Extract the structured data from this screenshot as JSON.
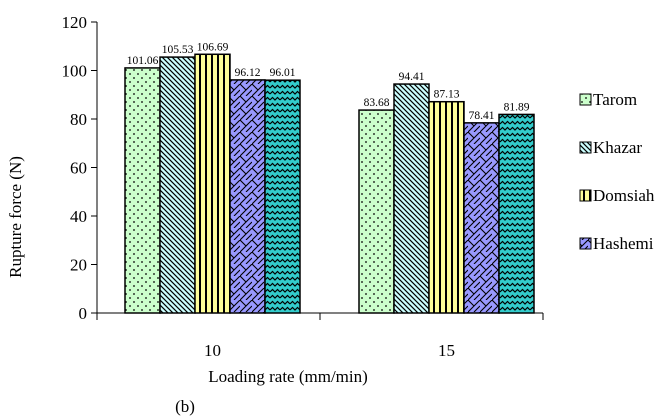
{
  "chart_data": {
    "type": "bar",
    "categories": [
      "10",
      "15"
    ],
    "series": [
      {
        "name": "Tarom",
        "values": [
          101.06,
          83.68
        ],
        "labels": [
          "101.06",
          "83.68"
        ],
        "color": "#ccffcc",
        "pattern": "dots"
      },
      {
        "name": "Khazar",
        "values": [
          105.53,
          94.41
        ],
        "labels": [
          "105.53",
          "94.41"
        ],
        "color": "#ccffff",
        "pattern": "diagonal"
      },
      {
        "name": "Domsiah",
        "values": [
          106.69,
          87.13
        ],
        "labels": [
          "106.69",
          "87.13"
        ],
        "color": "#ffff99",
        "pattern": "vertical"
      },
      {
        "name": "Hashemi",
        "values": [
          96.12,
          78.41
        ],
        "labels": [
          "96.12",
          "78.41"
        ],
        "color": "#9999ff",
        "pattern": "weave"
      },
      {
        "name": "",
        "values": [
          96.01,
          81.89
        ],
        "labels": [
          "96.01",
          "81.89"
        ],
        "color": "#33cccc",
        "pattern": "wave"
      }
    ],
    "xlabel": "Loading rate (mm/min)",
    "ylabel": "Rupture force (N)",
    "ylim": [
      0,
      120
    ],
    "yticks": [
      "0",
      "20",
      "40",
      "60",
      "80",
      "100",
      "120"
    ],
    "grid": false,
    "legend_position": "right",
    "figure_label": "(b)"
  }
}
